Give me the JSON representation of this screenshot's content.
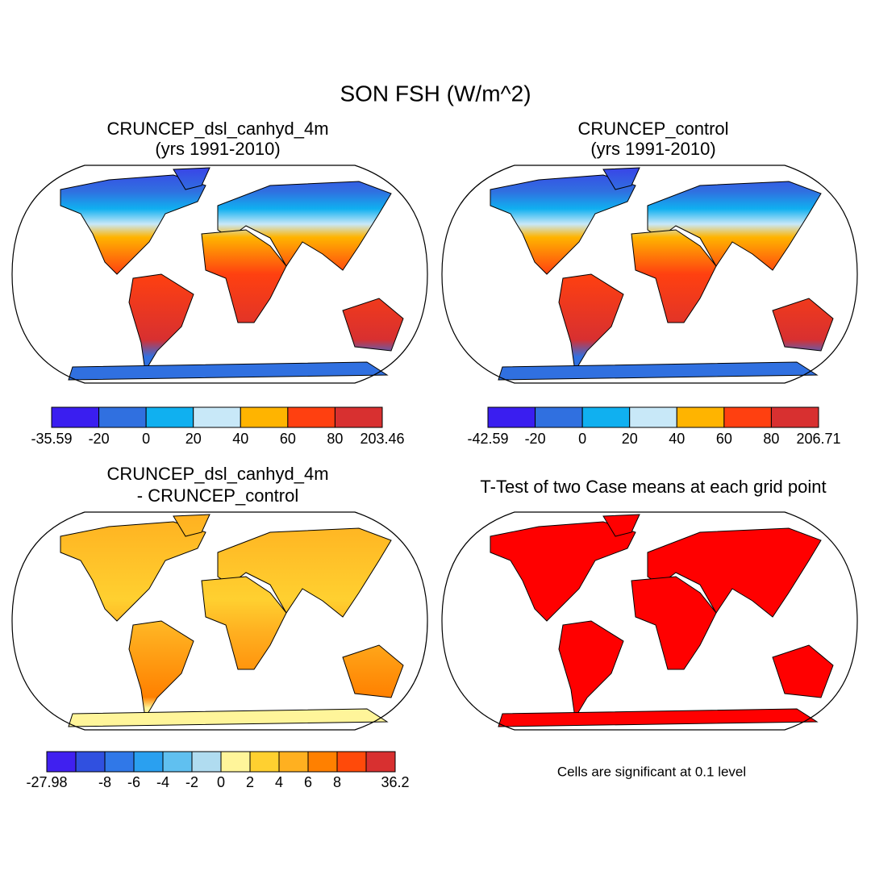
{
  "title": "SON FSH (W/m^2)",
  "panels": [
    {
      "title": [
        "CRUNCEP_dsl_canhyd_4m",
        "(yrs 1991-2010)"
      ],
      "colorbar": {
        "colors": [
          "#3a1ef0",
          "#3070e0",
          "#10b0f0",
          "#c8e8f8",
          "#ffb400",
          "#ff4010",
          "#d83030"
        ],
        "labels": [
          "-35.59",
          "-20",
          "0",
          "20",
          "40",
          "60",
          "80",
          "203.46"
        ]
      }
    },
    {
      "title": [
        "CRUNCEP_control",
        "(yrs 1991-2010)"
      ],
      "colorbar": {
        "colors": [
          "#3a1ef0",
          "#3070e0",
          "#10b0f0",
          "#c8e8f8",
          "#ffb400",
          "#ff4010",
          "#d83030"
        ],
        "labels": [
          "-42.59",
          "-20",
          "0",
          "20",
          "40",
          "60",
          "80",
          "206.71"
        ]
      }
    },
    {
      "title": [
        "CRUNCEP_dsl_canhyd_4m",
        "- CRUNCEP_control"
      ],
      "colorbar": {
        "colors": [
          "#4020f0",
          "#3050e0",
          "#3078e8",
          "#2aa0f0",
          "#60c0f0",
          "#b0dcf0",
          "#fff59a",
          "#ffd030",
          "#ffb020",
          "#ff8000",
          "#ff4a0a",
          "#d83030"
        ],
        "labels": [
          "-27.98",
          null,
          "-8",
          "-6",
          "-4",
          "-2",
          "0",
          "2",
          "4",
          "6",
          "8",
          null,
          "36.2"
        ]
      }
    },
    {
      "title": [
        "T-Test of two Case means at each grid point"
      ]
    }
  ],
  "note": "Cells are significant at 0.1 level"
}
